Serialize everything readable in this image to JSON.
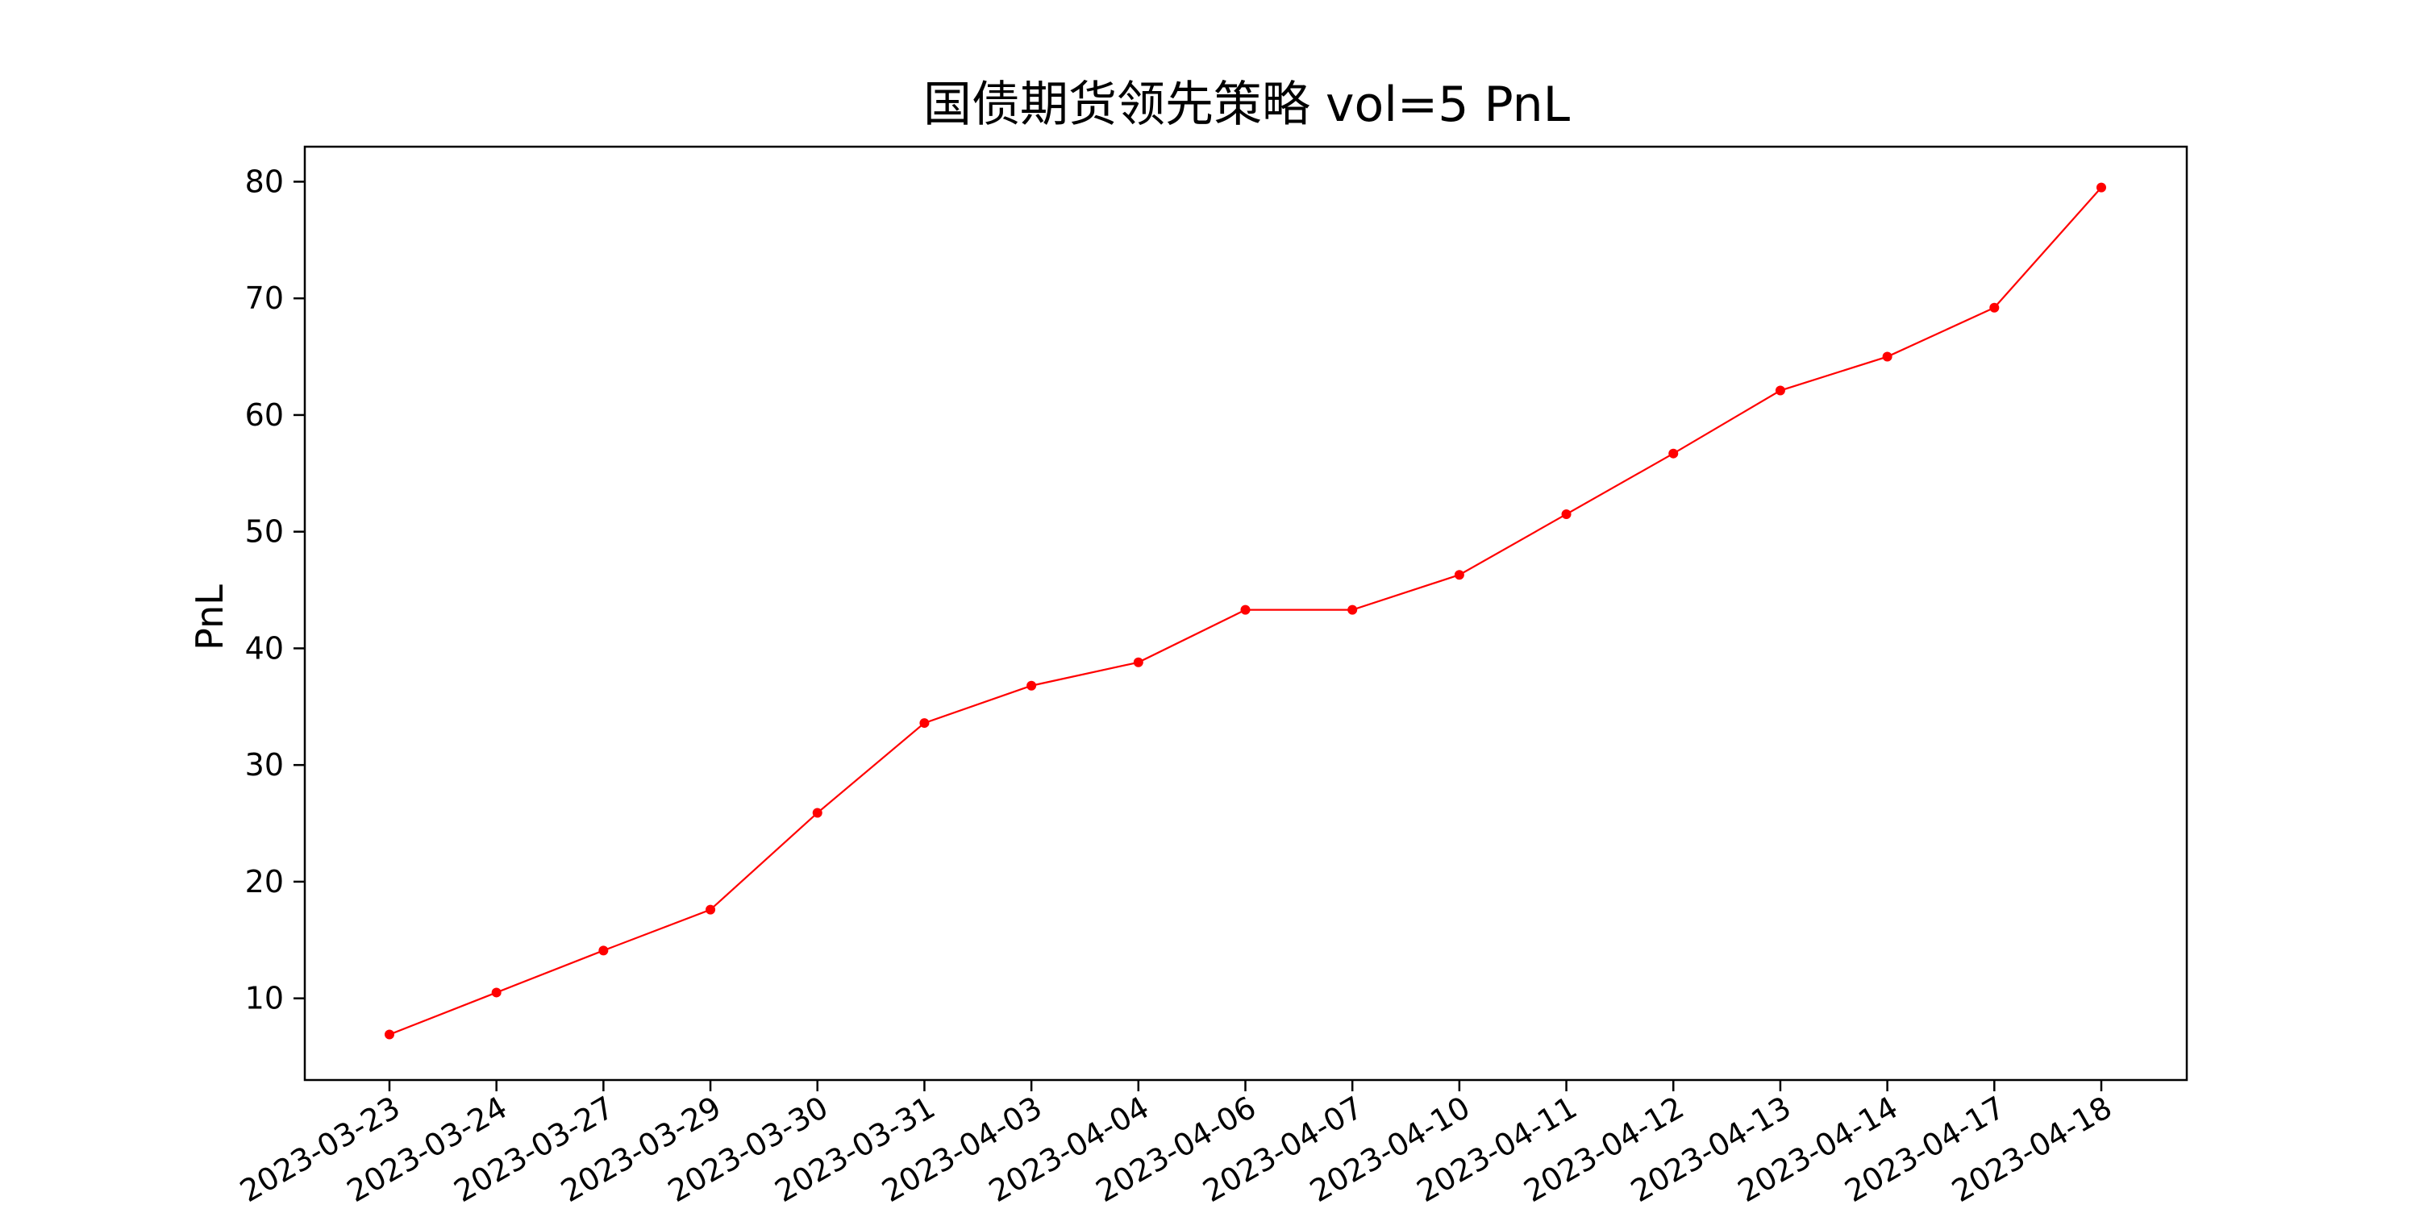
{
  "chart_data": {
    "type": "line",
    "title": "国债期货领先策略 vol=5 PnL",
    "xlabel": "",
    "ylabel": "PnL",
    "categories": [
      "2023-03-23",
      "2023-03-24",
      "2023-03-27",
      "2023-03-29",
      "2023-03-30",
      "2023-03-31",
      "2023-04-03",
      "2023-04-04",
      "2023-04-06",
      "2023-04-07",
      "2023-04-10",
      "2023-04-11",
      "2023-04-12",
      "2023-04-13",
      "2023-04-14",
      "2023-04-17",
      "2023-04-18"
    ],
    "series": [
      {
        "values": [
          6.9,
          10.5,
          14.1,
          17.6,
          25.9,
          33.6,
          36.8,
          38.8,
          43.3,
          43.3,
          46.3,
          51.5,
          56.7,
          62.1,
          65.0,
          69.2,
          79.5
        ],
        "color": "#ff0000",
        "marker": "circle"
      }
    ],
    "yticks": [
      10,
      20,
      30,
      40,
      50,
      60,
      70,
      80
    ],
    "ylim": [
      3,
      83
    ],
    "grid": false,
    "legend": "none"
  }
}
